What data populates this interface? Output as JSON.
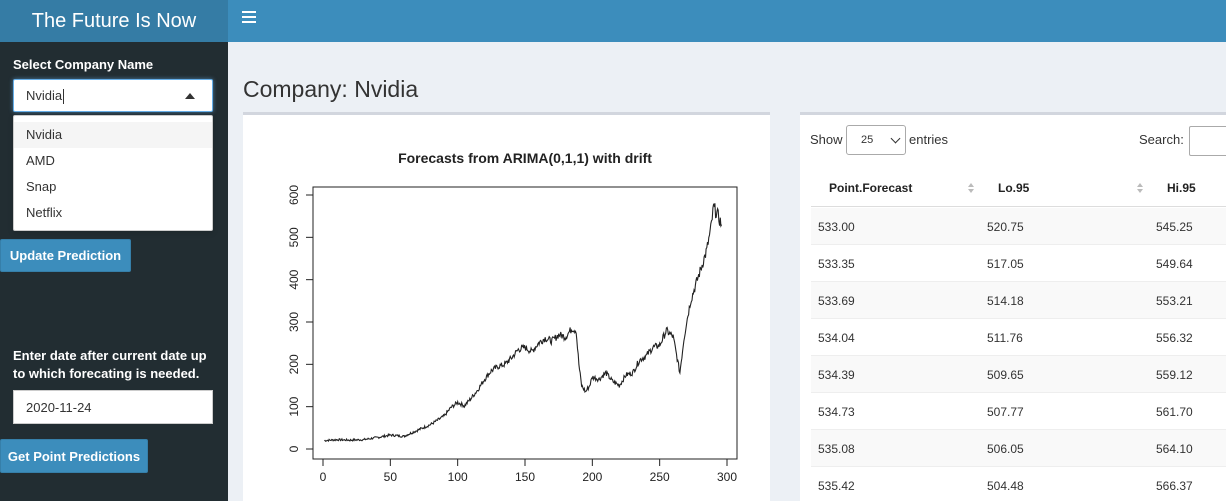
{
  "header": {
    "app_title": "The Future Is Now"
  },
  "sidebar": {
    "company_label": "Select Company Name",
    "company_selected": "Nvidia",
    "company_options": [
      "Nvidia",
      "AMD",
      "Snap",
      "Netflix"
    ],
    "update_button": "Update Prediction",
    "date_label": "Enter date after current date up to which forecating is needed.",
    "date_value": "2020-11-24",
    "points_button": "Get Point Predictions"
  },
  "main": {
    "page_title": "Company: Nvidia"
  },
  "chart_data": {
    "type": "line",
    "title": "Forecasts from ARIMA(0,1,1) with drift",
    "xlabel": "",
    "ylabel": "",
    "xlim": [
      0,
      300
    ],
    "ylim": [
      0,
      600
    ],
    "xticks": [
      0,
      50,
      100,
      150,
      200,
      250,
      300
    ],
    "yticks": [
      0,
      100,
      200,
      300,
      400,
      500,
      600
    ],
    "x": [
      1,
      10,
      20,
      30,
      40,
      50,
      60,
      70,
      80,
      90,
      95,
      100,
      105,
      110,
      115,
      120,
      125,
      130,
      135,
      140,
      145,
      150,
      155,
      160,
      165,
      170,
      175,
      180,
      185,
      188,
      190,
      192,
      195,
      198,
      200,
      205,
      210,
      215,
      220,
      225,
      230,
      235,
      240,
      245,
      250,
      255,
      260,
      265,
      268,
      270,
      273,
      276,
      280,
      285,
      288,
      290,
      292,
      294,
      296
    ],
    "y": [
      20,
      22,
      21,
      22,
      27,
      33,
      30,
      44,
      58,
      78,
      98,
      110,
      102,
      120,
      140,
      165,
      185,
      195,
      200,
      215,
      235,
      240,
      230,
      250,
      262,
      255,
      270,
      265,
      285,
      280,
      200,
      150,
      135,
      150,
      170,
      165,
      180,
      160,
      150,
      175,
      180,
      210,
      220,
      240,
      245,
      280,
      265,
      180,
      260,
      300,
      350,
      380,
      420,
      470,
      520,
      570,
      560,
      545,
      530
    ]
  },
  "table": {
    "show_label": "Show",
    "length_value": "25",
    "entries_label": "entries",
    "search_label": "Search:",
    "columns": [
      "Point.Forecast",
      "Lo.95",
      "Hi.95"
    ],
    "rows": [
      [
        "533.00",
        "520.75",
        "545.25"
      ],
      [
        "533.35",
        "517.05",
        "549.64"
      ],
      [
        "533.69",
        "514.18",
        "553.21"
      ],
      [
        "534.04",
        "511.76",
        "556.32"
      ],
      [
        "534.39",
        "509.65",
        "559.12"
      ],
      [
        "534.73",
        "507.77",
        "561.70"
      ],
      [
        "535.08",
        "506.05",
        "564.10"
      ],
      [
        "535.42",
        "504.48",
        "566.37"
      ]
    ]
  }
}
